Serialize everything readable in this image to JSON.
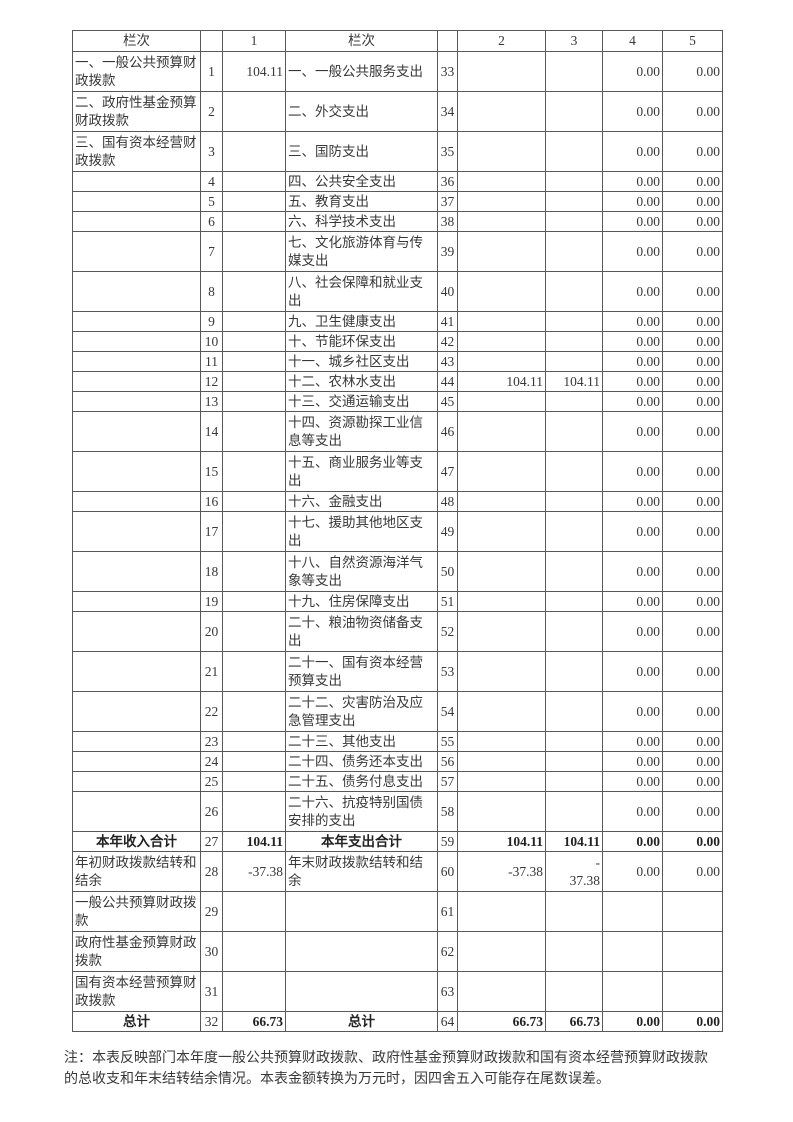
{
  "colors": {
    "background": "#ffffff",
    "text": "#383838",
    "bold_text": "#222222",
    "border": "#585858"
  },
  "table": {
    "header": [
      "栏次",
      "",
      "1",
      "栏次",
      "",
      "2",
      "3",
      "4",
      "5"
    ],
    "rows": [
      {
        "cells": [
          "一、一般公共预算财政拨款",
          "1",
          "104.11",
          "一、一般公共服务支出",
          "33",
          "",
          "",
          "0.00",
          "0.00"
        ],
        "tall": true,
        "bold": false
      },
      {
        "cells": [
          "二、政府性基金预算财政拨款",
          "2",
          "",
          "二、外交支出",
          "34",
          "",
          "",
          "0.00",
          "0.00"
        ],
        "tall": true,
        "bold": false
      },
      {
        "cells": [
          "三、国有资本经营财政拨款",
          "3",
          "",
          "三、国防支出",
          "35",
          "",
          "",
          "0.00",
          "0.00"
        ],
        "tall": true,
        "bold": false
      },
      {
        "cells": [
          "",
          "4",
          "",
          "四、公共安全支出",
          "36",
          "",
          "",
          "0.00",
          "0.00"
        ],
        "tall": false,
        "bold": false
      },
      {
        "cells": [
          "",
          "5",
          "",
          "五、教育支出",
          "37",
          "",
          "",
          "0.00",
          "0.00"
        ],
        "tall": false,
        "bold": false
      },
      {
        "cells": [
          "",
          "6",
          "",
          "六、科学技术支出",
          "38",
          "",
          "",
          "0.00",
          "0.00"
        ],
        "tall": false,
        "bold": false
      },
      {
        "cells": [
          "",
          "7",
          "",
          "七、文化旅游体育与传媒支出",
          "39",
          "",
          "",
          "0.00",
          "0.00"
        ],
        "tall": true,
        "bold": false
      },
      {
        "cells": [
          "",
          "8",
          "",
          "八、社会保障和就业支出",
          "40",
          "",
          "",
          "0.00",
          "0.00"
        ],
        "tall": true,
        "bold": false
      },
      {
        "cells": [
          "",
          "9",
          "",
          "九、卫生健康支出",
          "41",
          "",
          "",
          "0.00",
          "0.00"
        ],
        "tall": false,
        "bold": false
      },
      {
        "cells": [
          "",
          "10",
          "",
          "十、节能环保支出",
          "42",
          "",
          "",
          "0.00",
          "0.00"
        ],
        "tall": false,
        "bold": false
      },
      {
        "cells": [
          "",
          "11",
          "",
          "十一、城乡社区支出",
          "43",
          "",
          "",
          "0.00",
          "0.00"
        ],
        "tall": false,
        "bold": false
      },
      {
        "cells": [
          "",
          "12",
          "",
          "十二、农林水支出",
          "44",
          "104.11",
          "104.11",
          "0.00",
          "0.00"
        ],
        "tall": false,
        "bold": false
      },
      {
        "cells": [
          "",
          "13",
          "",
          "十三、交通运输支出",
          "45",
          "",
          "",
          "0.00",
          "0.00"
        ],
        "tall": false,
        "bold": false
      },
      {
        "cells": [
          "",
          "14",
          "",
          "十四、资源勘探工业信息等支出",
          "46",
          "",
          "",
          "0.00",
          "0.00"
        ],
        "tall": true,
        "bold": false
      },
      {
        "cells": [
          "",
          "15",
          "",
          "十五、商业服务业等支出",
          "47",
          "",
          "",
          "0.00",
          "0.00"
        ],
        "tall": true,
        "bold": false
      },
      {
        "cells": [
          "",
          "16",
          "",
          "十六、金融支出",
          "48",
          "",
          "",
          "0.00",
          "0.00"
        ],
        "tall": false,
        "bold": false
      },
      {
        "cells": [
          "",
          "17",
          "",
          "十七、援助其他地区支出",
          "49",
          "",
          "",
          "0.00",
          "0.00"
        ],
        "tall": true,
        "bold": false
      },
      {
        "cells": [
          "",
          "18",
          "",
          "十八、自然资源海洋气象等支出",
          "50",
          "",
          "",
          "0.00",
          "0.00"
        ],
        "tall": true,
        "bold": false
      },
      {
        "cells": [
          "",
          "19",
          "",
          "十九、住房保障支出",
          "51",
          "",
          "",
          "0.00",
          "0.00"
        ],
        "tall": false,
        "bold": false
      },
      {
        "cells": [
          "",
          "20",
          "",
          "二十、粮油物资储备支出",
          "52",
          "",
          "",
          "0.00",
          "0.00"
        ],
        "tall": true,
        "bold": false
      },
      {
        "cells": [
          "",
          "21",
          "",
          "二十一、国有资本经营预算支出",
          "53",
          "",
          "",
          "0.00",
          "0.00"
        ],
        "tall": true,
        "bold": false
      },
      {
        "cells": [
          "",
          "22",
          "",
          "二十二、灾害防治及应急管理支出",
          "54",
          "",
          "",
          "0.00",
          "0.00"
        ],
        "tall": true,
        "bold": false
      },
      {
        "cells": [
          "",
          "23",
          "",
          "二十三、其他支出",
          "55",
          "",
          "",
          "0.00",
          "0.00"
        ],
        "tall": false,
        "bold": false
      },
      {
        "cells": [
          "",
          "24",
          "",
          "二十四、债务还本支出",
          "56",
          "",
          "",
          "0.00",
          "0.00"
        ],
        "tall": false,
        "bold": false
      },
      {
        "cells": [
          "",
          "25",
          "",
          "二十五、债务付息支出",
          "57",
          "",
          "",
          "0.00",
          "0.00"
        ],
        "tall": false,
        "bold": false
      },
      {
        "cells": [
          "",
          "26",
          "",
          "二十六、抗疫特别国债安排的支出",
          "58",
          "",
          "",
          "0.00",
          "0.00"
        ],
        "tall": true,
        "bold": false
      },
      {
        "cells": [
          "本年收入合计",
          "27",
          "104.11",
          "本年支出合计",
          "59",
          "104.11",
          "104.11",
          "0.00",
          "0.00"
        ],
        "tall": false,
        "bold": true
      },
      {
        "cells": [
          "年初财政拨款结转和结余",
          "28",
          "-37.38",
          "年末财政拨款结转和结余",
          "60",
          "-37.38",
          "-\n37.38",
          "0.00",
          "0.00"
        ],
        "tall": true,
        "bold": false
      },
      {
        "cells": [
          "一般公共预算财政拨款",
          "29",
          "",
          "",
          "61",
          "",
          "",
          "",
          ""
        ],
        "tall": true,
        "bold": false
      },
      {
        "cells": [
          "政府性基金预算财政拨款",
          "30",
          "",
          "",
          "62",
          "",
          "",
          "",
          ""
        ],
        "tall": true,
        "bold": false
      },
      {
        "cells": [
          "国有资本经营预算财政拨款",
          "31",
          "",
          "",
          "63",
          "",
          "",
          "",
          ""
        ],
        "tall": true,
        "bold": false
      },
      {
        "cells": [
          "总计",
          "32",
          "66.73",
          "总计",
          "64",
          "66.73",
          "66.73",
          "0.00",
          "0.00"
        ],
        "tall": false,
        "bold": true
      }
    ]
  },
  "note": "注：本表反映部门本年度一般公共预算财政拨款、政府性基金预算财政拨款和国有资本经营预算财政拨款的总收支和年末结转结余情况。本表金额转换为万元时，因四舍五入可能存在尾数误差。"
}
